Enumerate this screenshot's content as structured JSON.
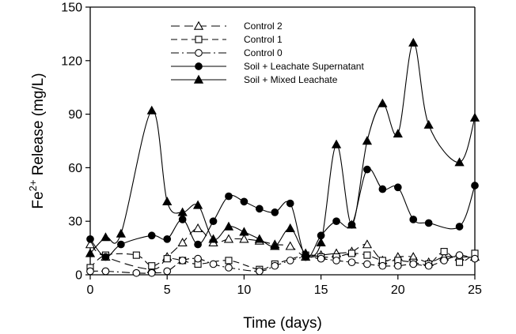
{
  "chart_data": {
    "type": "line",
    "xlabel": "Time (days)",
    "ylabel_main": "Fe",
    "ylabel_sup": "2+",
    "ylabel_rest": " Release (mg/L)",
    "xlim": [
      0,
      25
    ],
    "ylim": [
      0,
      150
    ],
    "xticks": [
      0,
      5,
      10,
      15,
      20,
      25
    ],
    "yticks": [
      0,
      30,
      60,
      90,
      120,
      150
    ],
    "grid": false,
    "legend_position": "top-center",
    "series": [
      {
        "name": "Control 2",
        "marker": "triangle-open",
        "dash": "long-dash",
        "x": [
          0,
          1,
          4,
          5,
          6,
          7,
          8,
          9,
          10,
          11,
          12,
          13,
          14,
          15,
          16,
          17,
          18,
          19,
          20,
          21,
          22,
          23,
          24,
          25
        ],
        "y": [
          17,
          10,
          3,
          10,
          18,
          26,
          18,
          20,
          20,
          19,
          17,
          16,
          10,
          11,
          12,
          13,
          17,
          8,
          10,
          10,
          7,
          10,
          10,
          10
        ]
      },
      {
        "name": "Control 1",
        "marker": "square-open",
        "dash": "medium-dash",
        "x": [
          0,
          1,
          3,
          4,
          5,
          6,
          7,
          9,
          11,
          12,
          14,
          15,
          16,
          17,
          18,
          19,
          20,
          21,
          22,
          23,
          24,
          25
        ],
        "y": [
          4,
          11,
          11,
          5,
          9,
          8,
          6,
          8,
          3,
          6,
          11,
          10,
          10,
          12,
          11,
          8,
          8,
          7,
          6,
          13,
          7,
          12
        ]
      },
      {
        "name": "Control 0",
        "marker": "circle-open",
        "dash": "dash-dot",
        "x": [
          0,
          1,
          3,
          4,
          5,
          6,
          7,
          8,
          9,
          11,
          12,
          13,
          14,
          15,
          16,
          17,
          18,
          19,
          20,
          21,
          22,
          23,
          24,
          25
        ],
        "y": [
          2,
          2,
          1,
          1,
          2,
          8,
          9,
          6,
          4,
          2,
          5,
          8,
          10,
          9,
          8,
          7,
          6,
          5,
          5,
          6,
          5,
          8,
          11,
          9
        ]
      },
      {
        "name": "Soil + Leachate Supernatant",
        "marker": "circle-filled",
        "dash": "solid",
        "x": [
          0,
          1,
          2,
          4,
          5,
          6,
          7,
          8,
          9,
          10,
          11,
          12,
          13,
          14,
          15,
          16,
          17,
          18,
          19,
          20,
          21,
          22,
          24,
          25
        ],
        "y": [
          20,
          10,
          17,
          22,
          20,
          31,
          17,
          30,
          44,
          41,
          37,
          35,
          40,
          10,
          22,
          30,
          28,
          59,
          48,
          49,
          31,
          29,
          27,
          50
        ]
      },
      {
        "name": "Soil + Mixed Leachate",
        "marker": "triangle-filled",
        "dash": "solid",
        "x": [
          0,
          1,
          2,
          4,
          5,
          6,
          7,
          8,
          9,
          10,
          11,
          12,
          13,
          14,
          15,
          16,
          17,
          18,
          19,
          20,
          21,
          22,
          24,
          25
        ],
        "y": [
          12,
          21,
          23,
          92,
          41,
          35,
          39,
          20,
          27,
          24,
          20,
          16,
          26,
          12,
          18,
          73,
          28,
          75,
          96,
          79,
          130,
          84,
          63,
          88
        ]
      }
    ]
  }
}
